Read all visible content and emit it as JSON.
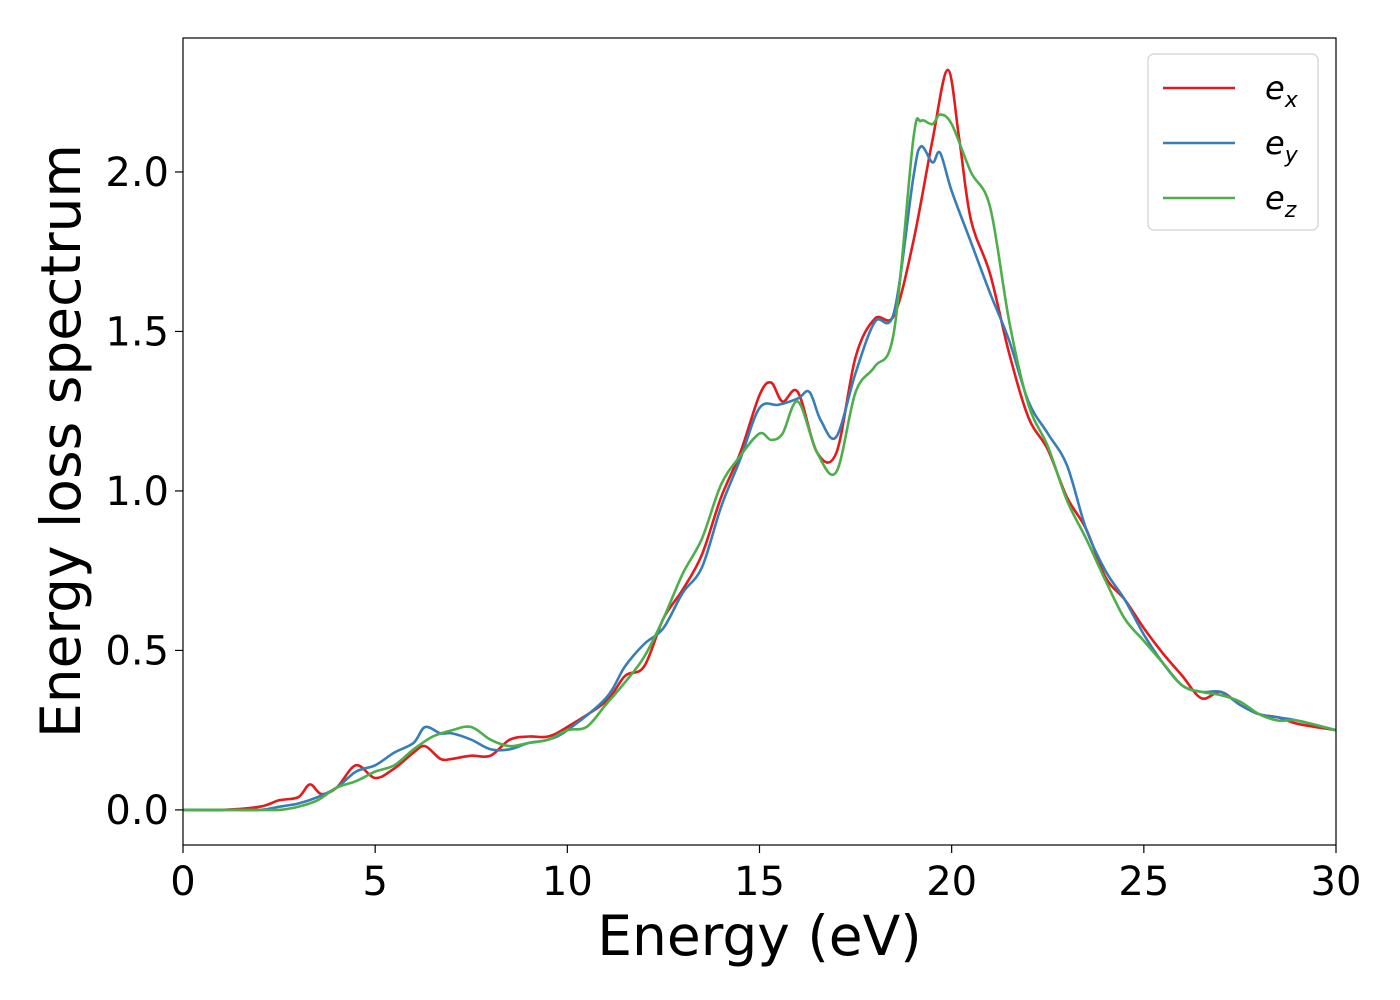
{
  "chart_data": {
    "type": "line",
    "title": "",
    "xlabel": "Energy (eV)",
    "ylabel": "Energy loss spectrum",
    "xlim": [
      0,
      30
    ],
    "ylim": [
      -0.11,
      2.42
    ],
    "xticks": [
      "0",
      "5",
      "10",
      "15",
      "20",
      "25",
      "30"
    ],
    "yticks": [
      "0.0",
      "0.5",
      "1.0",
      "1.5",
      "2.0"
    ],
    "xtick_values": [
      0,
      5,
      10,
      15,
      20,
      25,
      30
    ],
    "ytick_values": [
      0.0,
      0.5,
      1.0,
      1.5,
      2.0
    ],
    "grid": false,
    "legend_position": "top-right",
    "series": [
      {
        "name": "e_x",
        "label_base": "e",
        "label_sub": "x",
        "color": "#e41a1c",
        "points": [
          [
            0,
            0
          ],
          [
            1,
            0
          ],
          [
            2,
            0.01
          ],
          [
            2.5,
            0.03
          ],
          [
            3,
            0.04
          ],
          [
            3.3,
            0.08
          ],
          [
            3.6,
            0.05
          ],
          [
            4,
            0.07
          ],
          [
            4.5,
            0.14
          ],
          [
            5,
            0.1
          ],
          [
            5.5,
            0.13
          ],
          [
            6,
            0.18
          ],
          [
            6.3,
            0.2
          ],
          [
            6.7,
            0.16
          ],
          [
            7,
            0.16
          ],
          [
            7.5,
            0.17
          ],
          [
            8,
            0.17
          ],
          [
            8.5,
            0.22
          ],
          [
            9,
            0.23
          ],
          [
            9.5,
            0.23
          ],
          [
            10,
            0.26
          ],
          [
            11,
            0.34
          ],
          [
            11.5,
            0.42
          ],
          [
            12,
            0.45
          ],
          [
            12.5,
            0.6
          ],
          [
            13,
            0.69
          ],
          [
            13.5,
            0.8
          ],
          [
            14,
            0.98
          ],
          [
            14.5,
            1.12
          ],
          [
            15,
            1.3
          ],
          [
            15.3,
            1.34
          ],
          [
            15.6,
            1.28
          ],
          [
            16,
            1.31
          ],
          [
            16.5,
            1.12
          ],
          [
            17,
            1.12
          ],
          [
            17.5,
            1.42
          ],
          [
            18,
            1.54
          ],
          [
            18.5,
            1.55
          ],
          [
            19,
            1.78
          ],
          [
            19.5,
            2.1
          ],
          [
            19.9,
            2.32
          ],
          [
            20.2,
            2.1
          ],
          [
            20.5,
            1.85
          ],
          [
            21,
            1.68
          ],
          [
            21.5,
            1.43
          ],
          [
            22,
            1.23
          ],
          [
            22.5,
            1.13
          ],
          [
            23,
            0.98
          ],
          [
            23.5,
            0.88
          ],
          [
            24,
            0.73
          ],
          [
            24.5,
            0.66
          ],
          [
            25,
            0.57
          ],
          [
            25.5,
            0.49
          ],
          [
            26,
            0.42
          ],
          [
            26.5,
            0.35
          ],
          [
            27,
            0.37
          ],
          [
            27.5,
            0.33
          ],
          [
            28,
            0.3
          ],
          [
            28.5,
            0.29
          ],
          [
            29,
            0.27
          ],
          [
            30,
            0.25
          ]
        ]
      },
      {
        "name": "e_y",
        "label_base": "e",
        "label_sub": "y",
        "color": "#377eb8",
        "points": [
          [
            0,
            0
          ],
          [
            1,
            0
          ],
          [
            2,
            0
          ],
          [
            2.5,
            0.01
          ],
          [
            3,
            0.02
          ],
          [
            3.5,
            0.04
          ],
          [
            4,
            0.07
          ],
          [
            4.5,
            0.12
          ],
          [
            5,
            0.14
          ],
          [
            5.5,
            0.18
          ],
          [
            6,
            0.21
          ],
          [
            6.3,
            0.26
          ],
          [
            6.7,
            0.24
          ],
          [
            7,
            0.24
          ],
          [
            7.5,
            0.22
          ],
          [
            8,
            0.19
          ],
          [
            8.5,
            0.19
          ],
          [
            9,
            0.21
          ],
          [
            9.5,
            0.22
          ],
          [
            10,
            0.25
          ],
          [
            11,
            0.35
          ],
          [
            11.5,
            0.45
          ],
          [
            12,
            0.52
          ],
          [
            12.5,
            0.57
          ],
          [
            13,
            0.68
          ],
          [
            13.5,
            0.76
          ],
          [
            14,
            0.95
          ],
          [
            14.5,
            1.1
          ],
          [
            15,
            1.26
          ],
          [
            15.5,
            1.27
          ],
          [
            16,
            1.29
          ],
          [
            16.3,
            1.31
          ],
          [
            16.6,
            1.22
          ],
          [
            17,
            1.17
          ],
          [
            17.5,
            1.37
          ],
          [
            18,
            1.53
          ],
          [
            18.5,
            1.56
          ],
          [
            19,
            1.98
          ],
          [
            19.2,
            2.08
          ],
          [
            19.5,
            2.03
          ],
          [
            19.7,
            2.06
          ],
          [
            20,
            1.94
          ],
          [
            20.5,
            1.78
          ],
          [
            21,
            1.62
          ],
          [
            21.5,
            1.47
          ],
          [
            22,
            1.28
          ],
          [
            22.5,
            1.18
          ],
          [
            23,
            1.08
          ],
          [
            23.5,
            0.88
          ],
          [
            24,
            0.75
          ],
          [
            24.5,
            0.66
          ],
          [
            25,
            0.55
          ],
          [
            25.5,
            0.46
          ],
          [
            26,
            0.39
          ],
          [
            26.5,
            0.37
          ],
          [
            27,
            0.37
          ],
          [
            27.5,
            0.33
          ],
          [
            28,
            0.3
          ],
          [
            28.5,
            0.29
          ],
          [
            29,
            0.28
          ],
          [
            30,
            0.25
          ]
        ]
      },
      {
        "name": "e_z",
        "label_base": "e",
        "label_sub": "z",
        "color": "#4daf4a",
        "points": [
          [
            0,
            0
          ],
          [
            1,
            0
          ],
          [
            2,
            0
          ],
          [
            2.5,
            0
          ],
          [
            3,
            0.01
          ],
          [
            3.5,
            0.03
          ],
          [
            4,
            0.07
          ],
          [
            4.5,
            0.09
          ],
          [
            5,
            0.12
          ],
          [
            5.5,
            0.14
          ],
          [
            6,
            0.19
          ],
          [
            6.5,
            0.23
          ],
          [
            7,
            0.25
          ],
          [
            7.5,
            0.26
          ],
          [
            8,
            0.22
          ],
          [
            8.5,
            0.2
          ],
          [
            9,
            0.21
          ],
          [
            9.5,
            0.22
          ],
          [
            10,
            0.25
          ],
          [
            10.5,
            0.26
          ],
          [
            11,
            0.33
          ],
          [
            11.5,
            0.4
          ],
          [
            12,
            0.48
          ],
          [
            12.5,
            0.6
          ],
          [
            13,
            0.74
          ],
          [
            13.5,
            0.85
          ],
          [
            14,
            1.02
          ],
          [
            14.5,
            1.11
          ],
          [
            15,
            1.18
          ],
          [
            15.3,
            1.16
          ],
          [
            15.6,
            1.18
          ],
          [
            16,
            1.28
          ],
          [
            16.5,
            1.12
          ],
          [
            17,
            1.06
          ],
          [
            17.5,
            1.31
          ],
          [
            18,
            1.39
          ],
          [
            18.5,
            1.5
          ],
          [
            19,
            2.1
          ],
          [
            19.2,
            2.16
          ],
          [
            19.5,
            2.15
          ],
          [
            19.7,
            2.18
          ],
          [
            20,
            2.15
          ],
          [
            20.5,
            2.0
          ],
          [
            21,
            1.89
          ],
          [
            21.5,
            1.53
          ],
          [
            22,
            1.27
          ],
          [
            22.5,
            1.14
          ],
          [
            23,
            0.97
          ],
          [
            23.5,
            0.85
          ],
          [
            24,
            0.72
          ],
          [
            24.5,
            0.6
          ],
          [
            25,
            0.53
          ],
          [
            25.5,
            0.46
          ],
          [
            26,
            0.39
          ],
          [
            26.5,
            0.37
          ],
          [
            27,
            0.36
          ],
          [
            27.5,
            0.34
          ],
          [
            28,
            0.3
          ],
          [
            28.5,
            0.28
          ],
          [
            29,
            0.28
          ],
          [
            30,
            0.25
          ]
        ]
      }
    ]
  }
}
